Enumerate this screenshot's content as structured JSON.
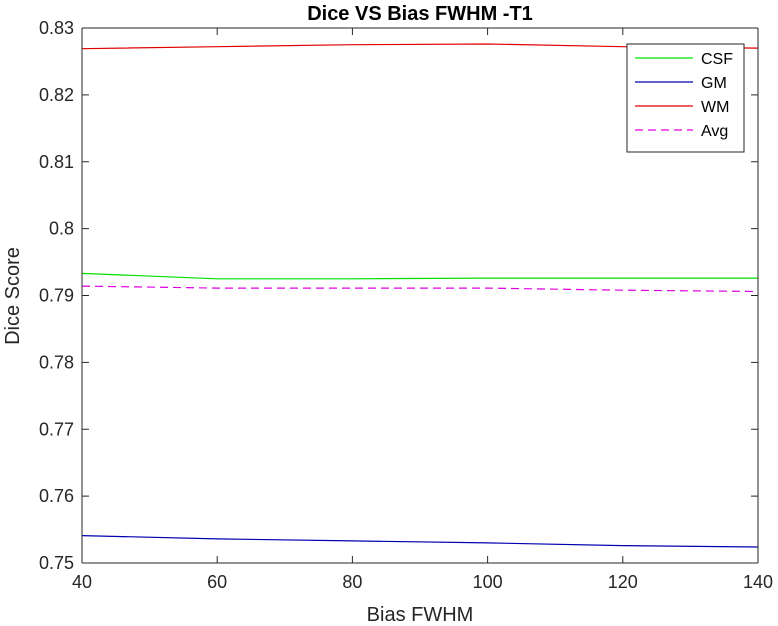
{
  "chart_data": {
    "type": "line",
    "title": "Dice VS Bias FWHM -T1",
    "xlabel": "Bias FWHM",
    "ylabel": "Dice Score",
    "xlim": [
      40,
      140
    ],
    "ylim": [
      0.75,
      0.83
    ],
    "xticks": [
      40,
      60,
      80,
      100,
      120,
      140
    ],
    "yticks": [
      0.75,
      0.76,
      0.77,
      0.78,
      0.79,
      0.8,
      0.81,
      0.82,
      0.83
    ],
    "ytick_labels": [
      "0.75",
      "0.76",
      "0.77",
      "0.78",
      "0.79",
      "0.8",
      "0.81",
      "0.82",
      "0.83"
    ],
    "grid": false,
    "legend_position": "top-right",
    "x": [
      40,
      60,
      80,
      100,
      120,
      140
    ],
    "series": [
      {
        "name": "CSF",
        "color": "#00e000",
        "dash": "solid",
        "values": [
          0.7933,
          0.7925,
          0.7925,
          0.7926,
          0.7926,
          0.7926
        ]
      },
      {
        "name": "GM",
        "color": "#0000b0",
        "dash": "solid",
        "values": [
          0.7541,
          0.7536,
          0.7533,
          0.753,
          0.7526,
          0.7524
        ]
      },
      {
        "name": "WM",
        "color": "#e00000",
        "dash": "solid",
        "values": [
          0.8269,
          0.8272,
          0.8275,
          0.8276,
          0.8272,
          0.827
        ]
      },
      {
        "name": "Avg",
        "color": "#e000e0",
        "dash": "dashed",
        "values": [
          0.7914,
          0.7911,
          0.7911,
          0.7911,
          0.7908,
          0.7906
        ]
      }
    ]
  }
}
